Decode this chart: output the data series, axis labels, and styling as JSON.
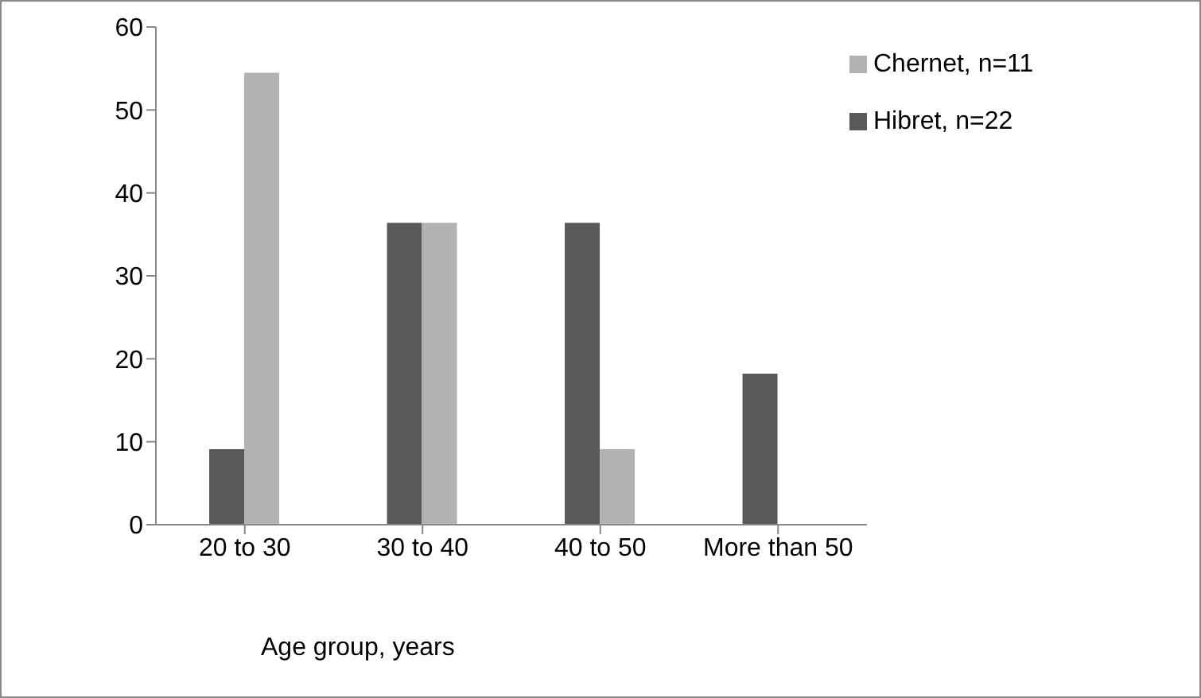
{
  "chart_data": {
    "type": "bar",
    "xlabel": "Age group, years",
    "categories": [
      "20 to 30",
      "30 to 40",
      "40 to 50",
      "More than 50"
    ],
    "series": [
      {
        "name": "Hibret, n=22",
        "color": "#595959",
        "values": [
          9.1,
          36.4,
          36.4,
          18.2
        ]
      },
      {
        "name": "Chernet, n=11",
        "color": "#b2b2b2",
        "values": [
          54.5,
          36.4,
          9.1,
          0
        ]
      }
    ],
    "ylim": [
      0,
      60
    ],
    "yticks": [
      0,
      10,
      20,
      30,
      40,
      50,
      60
    ],
    "grid": false,
    "legend": "top right"
  }
}
